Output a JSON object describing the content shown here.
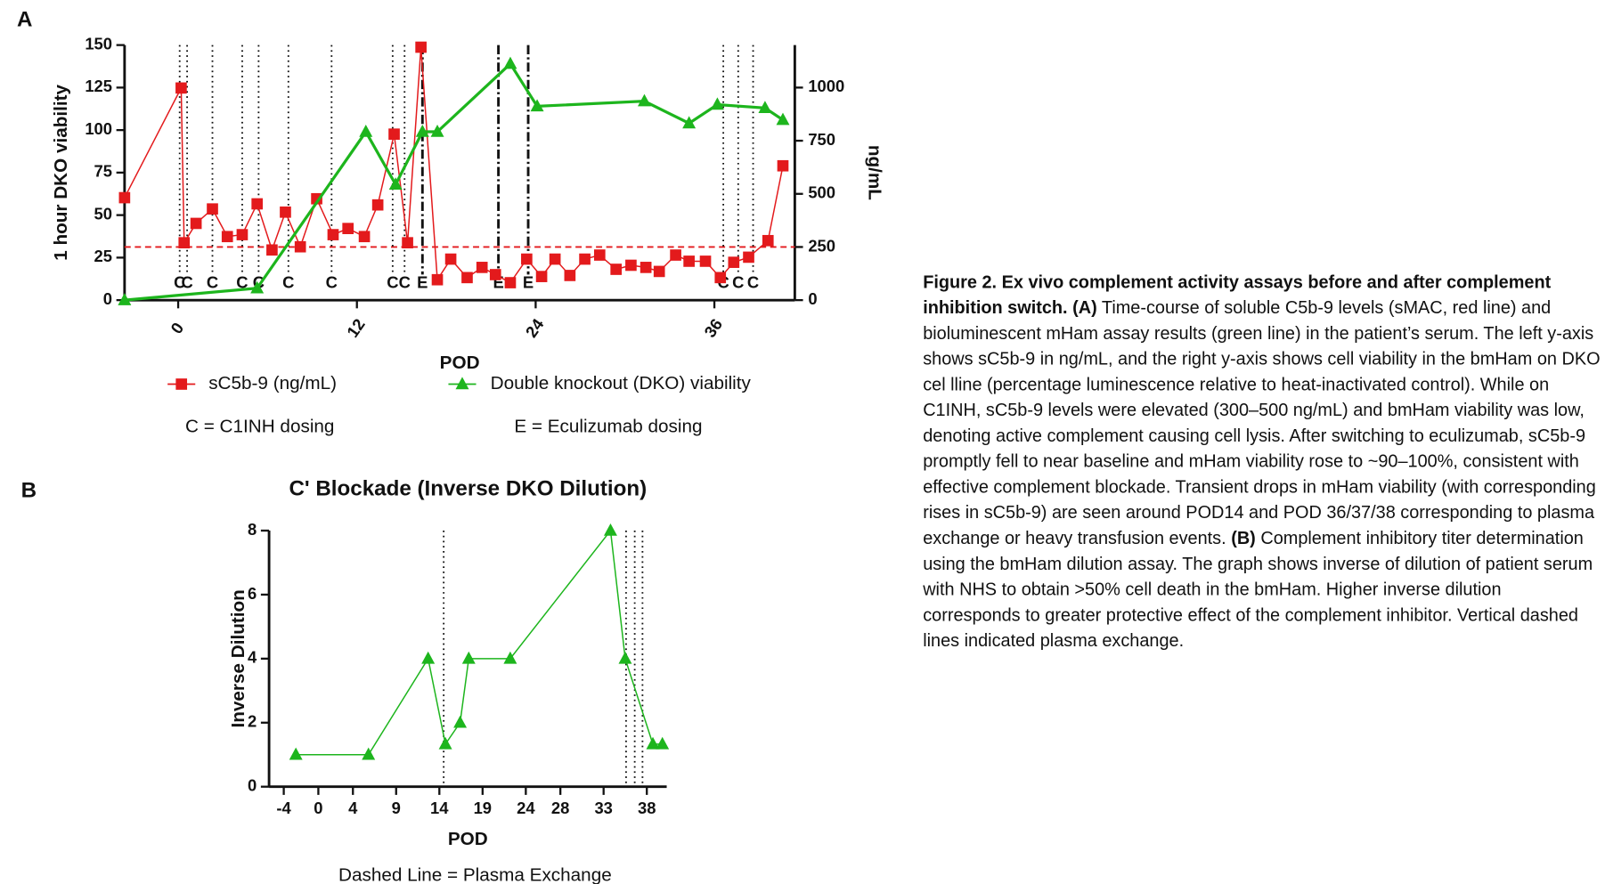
{
  "panel_labels": [
    "A",
    "B"
  ],
  "chart_data": [
    {
      "type": "line",
      "xlabel": "POD",
      "ylabel": "1 hour DKO viability",
      "y2label": "ng/mL",
      "xlim": [
        -3.6,
        41.4
      ],
      "xticks": [
        0,
        12,
        24,
        36
      ],
      "ylim": [
        0,
        150
      ],
      "yticks": [
        0,
        25,
        50,
        75,
        100,
        125,
        150
      ],
      "y2lim": [
        0,
        1200
      ],
      "y2ticks": [
        0,
        250,
        500,
        750,
        1000
      ],
      "series": [
        {
          "name": "sC5b-9 (ng/mL)",
          "color": "#e31a1c",
          "marker": "square",
          "axis": "y2",
          "x": [
            -3.6,
            0.2,
            0.4,
            1.2,
            2.3,
            3.3,
            4.3,
            5.3,
            6.3,
            7.2,
            8.2,
            9.3,
            10.4,
            11.4,
            12.5,
            13.4,
            14.5,
            15.4,
            16.3,
            17.4,
            18.3,
            19.4,
            20.4,
            21.3,
            22.3,
            23.4,
            24.4,
            25.3,
            26.3,
            27.3,
            28.3,
            29.4,
            30.4,
            31.4,
            32.3,
            33.4,
            34.3,
            35.4,
            36.4,
            37.3,
            38.3,
            39.6,
            40.6
          ],
          "values": [
            482,
            998,
            270,
            361,
            429,
            299,
            308,
            453,
            236,
            414,
            251,
            477,
            308,
            337,
            299,
            448,
            781,
            270,
            1190,
            96,
            193,
            106,
            154,
            120,
            82,
            193,
            111,
            193,
            116,
            193,
            212,
            145,
            164,
            154,
            135,
            212,
            183,
            183,
            106,
            178,
            202,
            280,
            632
          ]
        },
        {
          "name": "Double knockout (DKO) viability",
          "color": "#1db51d",
          "marker": "triangle",
          "x": [
            -3.6,
            5.3,
            12.6,
            14.6,
            16.4,
            17.4,
            22.3,
            24.1,
            31.3,
            34.3,
            36.2,
            39.4,
            40.6
          ],
          "values": [
            0,
            7,
            99,
            68,
            99,
            99,
            139,
            114,
            117,
            104,
            115,
            113,
            106
          ]
        }
      ],
      "hline": {
        "value": 250,
        "axis": "y2",
        "color": "#e31a1c"
      },
      "dosing": [
        {
          "x": 0.1,
          "label": "C",
          "line": "dotted"
        },
        {
          "x": 0.6,
          "label": "C",
          "line": "dotted"
        },
        {
          "x": 2.3,
          "label": "C",
          "line": "dotted"
        },
        {
          "x": 4.3,
          "label": "C",
          "line": "dotted"
        },
        {
          "x": 5.4,
          "label": "C",
          "line": "dotted"
        },
        {
          "x": 7.4,
          "label": "C",
          "line": "dotted"
        },
        {
          "x": 10.3,
          "label": "C",
          "line": "dotted"
        },
        {
          "x": 14.4,
          "label": "C",
          "line": "dotted"
        },
        {
          "x": 15.2,
          "label": "C",
          "line": "dotted"
        },
        {
          "x": 16.4,
          "label": "E",
          "line": "dashdot"
        },
        {
          "x": 21.5,
          "label": "E",
          "line": "dashdot"
        },
        {
          "x": 23.5,
          "label": "E",
          "line": "dashdot"
        },
        {
          "x": 36.6,
          "label": "C",
          "line": "dotted"
        },
        {
          "x": 37.6,
          "label": "C",
          "line": "dotted"
        },
        {
          "x": 38.6,
          "label": "C",
          "line": "dotted"
        }
      ],
      "notes": [
        "C = C1INH dosing",
        "E = Eculizumab dosing"
      ]
    },
    {
      "type": "line",
      "title": "C' Blockade (Inverse DKO Dilution)",
      "xlabel": "POD",
      "ylabel": "Inverse Dilution",
      "xlim": [
        -5.7,
        40.3
      ],
      "xticks": [
        -4,
        0,
        4,
        9,
        14,
        19,
        24,
        28,
        33,
        38
      ],
      "ylim": [
        0,
        8
      ],
      "yticks": [
        0,
        2,
        4,
        6,
        8
      ],
      "x": [
        -2.6,
        5.8,
        12.7,
        14.7,
        16.4,
        17.4,
        22.2,
        33.8,
        35.5,
        38.7,
        39.8
      ],
      "series": [
        {
          "color": "#1db51d",
          "marker": "triangle",
          "values": [
            1,
            1,
            4,
            1.33,
            2,
            4,
            4,
            8,
            4,
            1.33,
            1.33
          ]
        }
      ],
      "vlines": [
        14.5,
        35.6,
        36.6,
        37.5
      ],
      "notes": [
        "Dashed Line = Plasma Exchange"
      ]
    }
  ],
  "caption": {
    "title": "Figure 2. Ex vivo complement activity assays before and after complement inhibition switch.",
    "a_label": "(A)",
    "a_text": "Time-course of soluble C5b-9 levels (sMAC, red line) and bioluminescent mHam assay results (green line) in the patient’s serum. The left y-axis shows sC5b-9 in ng/mL, and the right y-axis shows cell viability in the bmHam on DKO cel lline (percentage luminescence relative to heat-inactivated control). While on C1INH, sC5b-9 levels were elevated (300–500 ng/mL) and bmHam viability was low, denoting active complement causing cell lysis. After switching to eculizumab, sC5b-9 promptly fell to near baseline and mHam viability rose to ~90–100%, consistent with effective complement blockade. Transient drops in mHam viability (with corresponding rises in sC5b-9) are seen around POD14 and POD 36/37/38 corresponding to plasma exchange or heavy transfusion events.",
    "b_label": "(B)",
    "b_text": "Complement inhibitory titer determination using the bmHam dilution assay. The graph shows inverse of dilution of patient serum with NHS to obtain >50% cell death in the bmHam. Higher inverse dilution corresponds to greater protective effect of the complement inhibitor. Vertical dashed lines indicated plasma exchange."
  }
}
